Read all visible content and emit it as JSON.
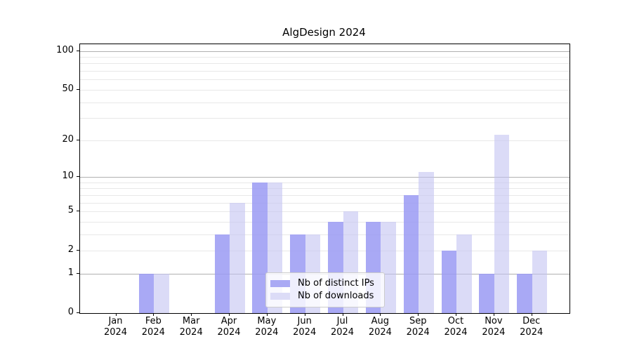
{
  "title": "AlgDesign 2024",
  "chart_data": {
    "type": "bar",
    "title": "AlgDesign 2024",
    "categories": [
      "Jan",
      "Feb",
      "Mar",
      "Apr",
      "May",
      "Jun",
      "Jul",
      "Aug",
      "Sep",
      "Oct",
      "Nov",
      "Dec"
    ],
    "year": "2024",
    "x_tick_labels": [
      "Jan\n2024",
      "Feb\n2024",
      "Mar\n2024",
      "Apr\n2024",
      "May\n2024",
      "Jun\n2024",
      "Jul\n2024",
      "Aug\n2024",
      "Sep\n2024",
      "Oct\n2024",
      "Nov\n2024",
      "Dec\n2024"
    ],
    "series": [
      {
        "name": "Nb of distinct IPs",
        "key": "ips",
        "color": "#a9a9f4",
        "values": [
          0,
          1,
          0,
          3,
          9,
          3,
          4,
          4,
          7,
          2,
          1,
          1
        ]
      },
      {
        "name": "Nb of downloads",
        "key": "downloads",
        "color": "#dcdcf7",
        "values": [
          0,
          1,
          0,
          6,
          9,
          3,
          5,
          4,
          11,
          3,
          22,
          2
        ]
      }
    ],
    "xlabel": "",
    "ylabel": "",
    "yscale": "log1p",
    "ylim": [
      0,
      113
    ],
    "yticks": [
      0,
      1,
      2,
      5,
      10,
      20,
      50,
      100
    ],
    "gridlines": {
      "dark": [
        1,
        10,
        100
      ],
      "light": [
        2,
        3,
        4,
        5,
        6,
        7,
        8,
        9,
        20,
        30,
        40,
        50,
        60,
        70,
        80,
        90
      ]
    },
    "grid": true,
    "legend_position": "lower center"
  },
  "colors": {
    "ips_bar": "#a9a9f4",
    "downloads_bar": "#dcdcf7",
    "major_gridline": "#b0b0b0",
    "minor_gridline": "#e8e8e8",
    "spine": "#000000",
    "background": "#ffffff"
  }
}
